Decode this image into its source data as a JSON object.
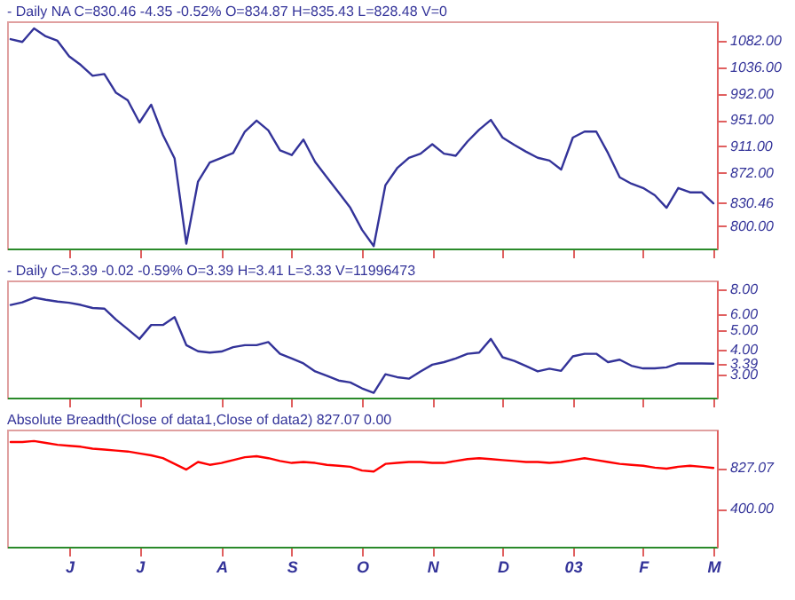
{
  "chart_data": [
    {
      "type": "line",
      "title": "- Daily NA C=830.46 -4.35 -0.52% O=834.87 H=835.43 L=828.48 V=0",
      "log": true,
      "tick_labels": "y",
      "ylim": [
        771,
        1117
      ],
      "yticks": [
        {
          "value": 800,
          "label": "800.00"
        },
        {
          "value": 830.46,
          "label": "830.46"
        },
        {
          "value": 872,
          "label": "872.00"
        },
        {
          "value": 911,
          "label": "911.00"
        },
        {
          "value": 951,
          "label": "951.00"
        },
        {
          "value": 992,
          "label": "992.00"
        },
        {
          "value": 1036,
          "label": "1036.00"
        },
        {
          "value": 1082,
          "label": "1082.00"
        }
      ],
      "series": [
        {
          "color": "#333399",
          "values": [
            1085,
            1080,
            1104,
            1090,
            1082,
            1055,
            1040,
            1022,
            1025,
            994,
            982,
            947,
            975,
            928,
            893,
            777,
            860,
            887,
            894,
            901,
            933,
            950,
            935,
            905,
            898,
            921,
            888,
            866,
            845,
            824,
            795,
            774,
            855,
            879,
            894,
            900,
            914,
            900,
            897,
            918,
            936,
            951,
            924,
            913,
            903,
            894,
            890,
            877,
            924,
            933,
            933,
            901,
            866,
            857,
            851,
            841,
            824,
            851,
            845,
            845,
            830
          ]
        }
      ]
    },
    {
      "type": "line",
      "title": "- Daily C=3.39 -0.02 -0.59% O=3.39 H=3.41 L=3.33 V=11996473",
      "log": true,
      "tick_labels": "y",
      "ylim": [
        2.29,
        8.86
      ],
      "yticks": [
        {
          "value": 3,
          "label": "3.00"
        },
        {
          "value": 3.39,
          "label": "3.39"
        },
        {
          "value": 4,
          "label": "4.00"
        },
        {
          "value": 5,
          "label": "5.00"
        },
        {
          "value": 6,
          "label": "6.00"
        },
        {
          "value": 8,
          "label": "8.00"
        }
      ],
      "series": [
        {
          "color": "#333399",
          "values": [
            6.68,
            6.88,
            7.27,
            7.09,
            6.95,
            6.85,
            6.68,
            6.45,
            6.4,
            5.64,
            5.05,
            4.51,
            5.3,
            5.3,
            5.8,
            4.2,
            3.91,
            3.85,
            3.9,
            4.1,
            4.2,
            4.2,
            4.35,
            3.8,
            3.6,
            3.4,
            3.1,
            2.95,
            2.79,
            2.73,
            2.55,
            2.42,
            3.0,
            2.9,
            2.85,
            3.1,
            3.35,
            3.45,
            3.6,
            3.8,
            3.85,
            4.51,
            3.65,
            3.5,
            3.3,
            3.1,
            3.2,
            3.12,
            3.69,
            3.8,
            3.8,
            3.45,
            3.55,
            3.31,
            3.21,
            3.21,
            3.25,
            3.4,
            3.4,
            3.4,
            3.39
          ]
        }
      ]
    },
    {
      "type": "line",
      "title": "Absolute Breadth(Close of data1,Close of data2) 827.07 0.00",
      "categories": [
        null,
        null,
        null,
        null,
        null,
        "J",
        null,
        null,
        null,
        null,
        null,
        "J",
        null,
        null,
        null,
        null,
        null,
        null,
        "A",
        null,
        null,
        null,
        null,
        null,
        "S",
        null,
        null,
        null,
        null,
        null,
        "O",
        null,
        null,
        null,
        null,
        null,
        "N",
        null,
        null,
        null,
        null,
        null,
        "D",
        null,
        null,
        null,
        null,
        null,
        "03",
        null,
        null,
        null,
        null,
        null,
        "F",
        null,
        null,
        null,
        null,
        null,
        "M"
      ],
      "ylim": [
        0,
        1230
      ],
      "yticks": [
        {
          "value": 400,
          "label": "400.00"
        },
        {
          "value": 827.07,
          "label": "827.07"
        }
      ],
      "series": [
        {
          "color": "#ff0000",
          "values": [
            1100,
            1100,
            1110,
            1090,
            1070,
            1060,
            1050,
            1030,
            1020,
            1010,
            1000,
            980,
            960,
            930,
            870,
            810,
            890,
            860,
            880,
            910,
            940,
            950,
            930,
            900,
            880,
            890,
            880,
            860,
            850,
            840,
            800,
            790,
            870,
            880,
            890,
            890,
            880,
            880,
            900,
            920,
            930,
            920,
            910,
            900,
            890,
            890,
            880,
            890,
            910,
            930,
            910,
            890,
            870,
            860,
            850,
            830,
            820,
            840,
            850,
            840,
            827.07
          ]
        }
      ]
    }
  ]
}
